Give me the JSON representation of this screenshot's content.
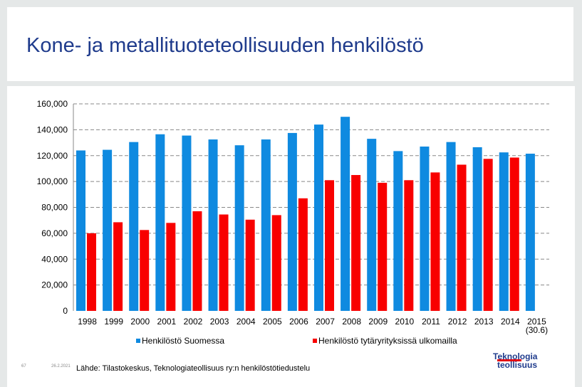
{
  "header": {
    "title": "Kone- ja metallituoteteollisuuden henkilöstö"
  },
  "chart_data": {
    "type": "bar",
    "categories": [
      "1998",
      "1999",
      "2000",
      "2001",
      "2002",
      "2003",
      "2004",
      "2005",
      "2006",
      "2007",
      "2008",
      "2009",
      "2010",
      "2011",
      "2012",
      "2013",
      "2014",
      "2015\n(30.6)"
    ],
    "series": [
      {
        "name": "Henkilöstö Suomessa",
        "color": "#0f8ae0",
        "values": [
          124000,
          124500,
          130500,
          136500,
          135500,
          132500,
          128000,
          132500,
          137500,
          144000,
          150000,
          133000,
          123500,
          127000,
          130500,
          126500,
          122500,
          121500
        ]
      },
      {
        "name": "Henkilöstö tytäryrityksissä ulkomailla",
        "color": "#f80000",
        "values": [
          60000,
          68500,
          62500,
          68000,
          77000,
          74500,
          70500,
          74000,
          87000,
          101000,
          105000,
          99000,
          101000,
          107000,
          113000,
          117500,
          118500,
          null
        ]
      }
    ],
    "yticks": [
      "0",
      "20,000",
      "40,000",
      "60,000",
      "80,000",
      "100,000",
      "120,000",
      "140,000",
      "160,000"
    ],
    "ylim": [
      0,
      160000
    ],
    "grid": true,
    "legend": "bottom",
    "title": "",
    "xlabel": "",
    "ylabel": ""
  },
  "footer": {
    "source": "Lähde: Tilastokeskus, Teknologiateollisuus ry:n henkilöstötiedustelu",
    "page_number": "67",
    "date": "26.2.2021"
  },
  "logo": {
    "line1": "Teknologia",
    "line2": "teollisuus"
  }
}
